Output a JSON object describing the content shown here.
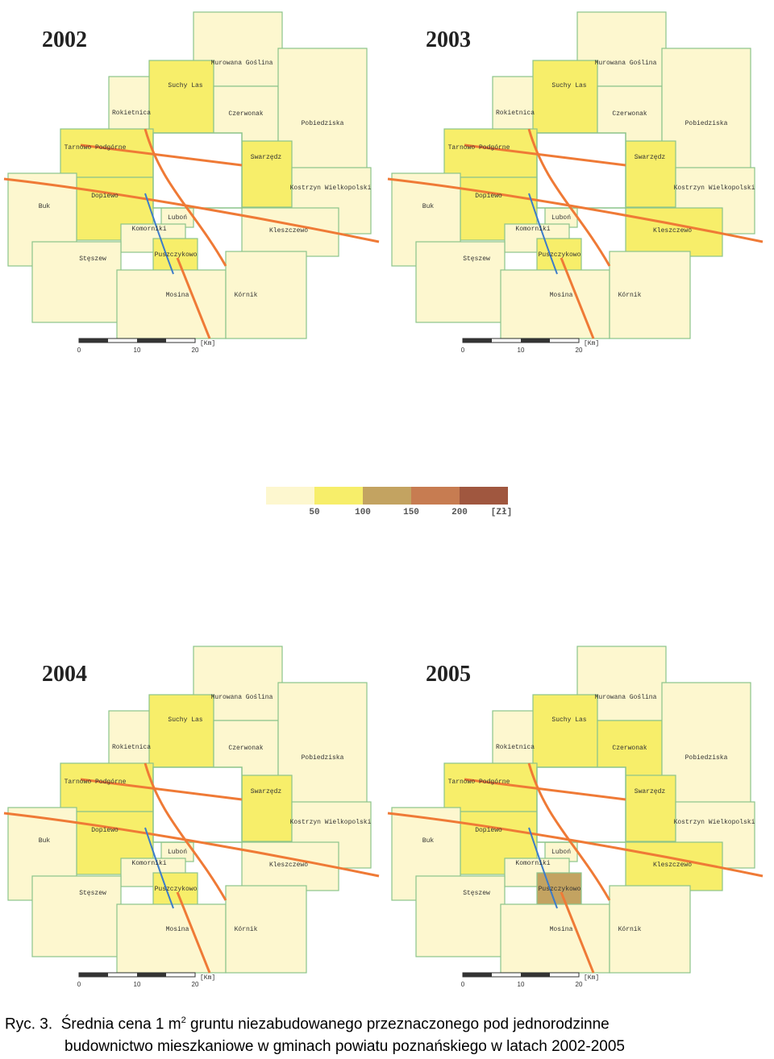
{
  "maps": [
    {
      "year": "2002",
      "shades": [
        0,
        0,
        1,
        0,
        0,
        1,
        1,
        0,
        1,
        0,
        0,
        0,
        0,
        0,
        1,
        0,
        0
      ]
    },
    {
      "year": "2003",
      "shades": [
        0,
        0,
        1,
        0,
        0,
        1,
        1,
        0,
        1,
        0,
        0,
        0,
        1,
        0,
        1,
        0,
        0
      ]
    },
    {
      "year": "2004",
      "shades": [
        0,
        0,
        1,
        0,
        0,
        1,
        1,
        0,
        1,
        0,
        0,
        0,
        0,
        0,
        1,
        0,
        0
      ]
    },
    {
      "year": "2005",
      "shades": [
        0,
        0,
        1,
        1,
        0,
        1,
        1,
        0,
        1,
        0,
        0,
        0,
        1,
        0,
        2,
        0,
        0
      ]
    }
  ],
  "gminy": [
    "Murowana Goślina",
    "Rokietnica",
    "Suchy Las",
    "Czerwonak",
    "Pobiedziska",
    "Tarnowo Podgórne",
    "Dopiewo",
    "Buk",
    "Swarzędz",
    "Kostrzyn Wielkopolski",
    "Luboń",
    "Komorniki",
    "Kleszczewo",
    "Stęszew",
    "Puszczykowo",
    "Mosina",
    "Kórnik"
  ],
  "scale": {
    "ticks": [
      "0",
      "10",
      "20"
    ],
    "unit": "[Km]"
  },
  "legend": {
    "colors": [
      "#fdf7cf",
      "#f7ee6a",
      "#c3a361",
      "#c77c51",
      "#a0573f"
    ],
    "ticks": [
      "50",
      "100",
      "150",
      "200"
    ],
    "unit": "[Zł]"
  },
  "caption": {
    "label": "Ryc. 3.",
    "text1": "Średnia cena  1 m",
    "sup": "2",
    "text2": " gruntu niezabudowanego przeznaczonego pod jednorodzinne",
    "line2": "budownictwo mieszkaniowe w gminach powiatu poznańskiego w latach 2002-2005"
  }
}
